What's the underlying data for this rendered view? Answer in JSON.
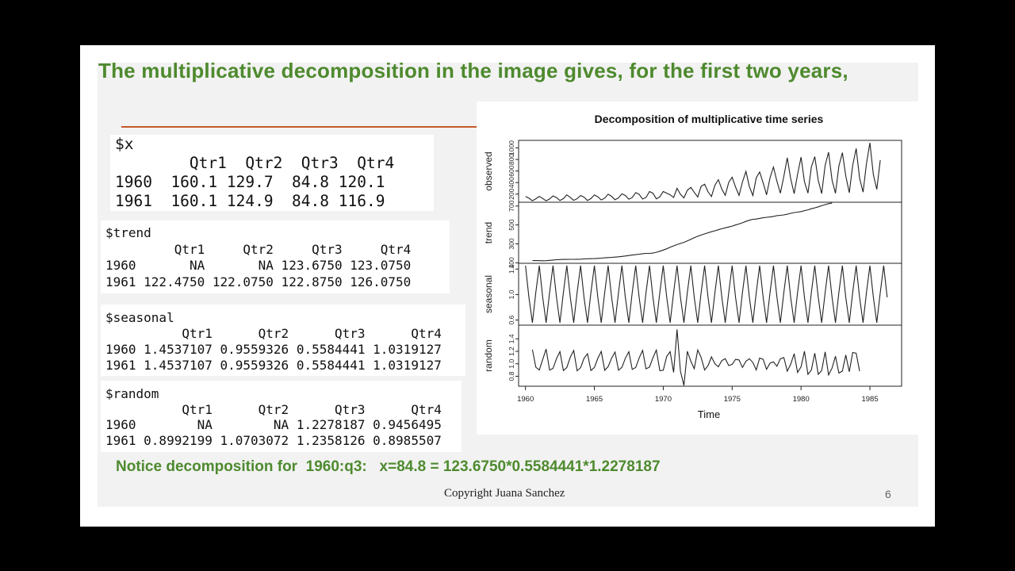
{
  "slide": {
    "headline": "The multiplicative decomposition in the image gives, for the first two years,",
    "notice": "Notice decomposition for  1960:q3:   x=84.8 = 123.6750*0.5584441*1.2278187",
    "copyright": "Copyright Juana Sanchez",
    "slide_number": "6"
  },
  "console_outputs": {
    "x": "$x\n        Qtr1  Qtr2  Qtr3  Qtr4\n1960  160.1 129.7  84.8 120.1\n1961  160.1 124.9  84.8 116.9",
    "trend": "$trend\n         Qtr1     Qtr2     Qtr3     Qtr4\n1960       NA       NA 123.6750 123.0750\n1961 122.4750 122.0750 122.8750 126.0750",
    "seasonal": "$seasonal\n          Qtr1      Qtr2      Qtr3      Qtr4\n1960 1.4537107 0.9559326 0.5584441 1.0319127\n1961 1.4537107 0.9559326 0.5584441 1.0319127",
    "random": "$random\n          Qtr1      Qtr2      Qtr3      Qtr4\n1960        NA        NA 1.2278187 0.9456495\n1961 0.8992199 1.0703072 1.2358126 0.8985507"
  },
  "chart_data": {
    "type": "line",
    "title": "Decomposition of multiplicative time series",
    "xlabel": "Time",
    "x_ticks": [
      1960,
      1965,
      1970,
      1975,
      1980,
      1985
    ],
    "xlim": [
      1959.5,
      1987.3
    ],
    "frequency": 4,
    "start": 1960.0,
    "panels": [
      {
        "name": "observed",
        "ylim": [
          60,
          1130
        ],
        "ticks": [
          200,
          400,
          600,
          800,
          1000
        ],
        "tick_labels": [
          "200",
          "400",
          "600",
          "800",
          "1000"
        ],
        "values": [
          160.1,
          129.7,
          84.8,
          120.1,
          160.1,
          124.9,
          84.8,
          116.9,
          169.7,
          140.9,
          89.7,
          123.3,
          187.3,
          144.1,
          92.9,
          120.1,
          176.8,
          147.3,
          89.7,
          123.3,
          185.7,
          155.3,
          99.3,
          131.3,
          200.1,
          161.7,
          102.5,
          136.1,
          204.9,
          176.1,
          112.1,
          140.9,
          227.3,
          195.3,
          115.3,
          142.5,
          244.9,
          214.5,
          118.5,
          153.7,
          244.9,
          216.1,
          188.9,
          142.5,
          301.0,
          196.9,
          136.1,
          267.3,
          317.0,
          230.5,
          152.1,
          336.2,
          371.4,
          240.1,
          158.5,
          355.4,
          449.9,
          286.6,
          179.3,
          403.4,
          491.5,
          321.8,
          177.7,
          409.8,
          593.9,
          329.8,
          176.1,
          483.5,
          584.3,
          395.4,
          187.3,
          485.1,
          669.2,
          421.0,
          216.1,
          509.1,
          827.7,
          467.5,
          209.7,
          542.7,
          840.5,
          414.6,
          217.7,
          670.8,
          848.5,
          437.0,
          209.7,
          701.2,
          925.3,
          443.4,
          214.5,
          683.6,
          917.3,
          515.5,
          224.1,
          694.8,
          989.4,
          477.1,
          233.7,
          730.0,
          1087.0,
          534.7,
          281.8,
          787.6
        ]
      },
      {
        "name": "trend",
        "ylim": [
          95,
          740
        ],
        "ticks": [
          100,
          300,
          500,
          700
        ],
        "tick_labels": [
          "100",
          "300",
          "500",
          "700"
        ],
        "offset": 2,
        "values": [
          123.675,
          123.075,
          122.475,
          122.075,
          122.875,
          126.075,
          129.075,
          132.475,
          134.775,
          135.875,
          136.275,
          136.575,
          136.775,
          137.475,
          138.875,
          140.975,
          142.575,
          143.475,
          144.675,
          147.075,
          149.775,
          152.475,
          154.975,
          157.475,
          160.375,
          163.775,
          167.775,
          172.375,
          177.175,
          181.775,
          186.375,
          191.175,
          196.375,
          199.675,
          199.675,
          202.975,
          211.075,
          222.675,
          234.475,
          247.875,
          264.475,
          279.275,
          292.775,
          304.675,
          315.975,
          330.975,
          348.375,
          364.975,
          380.275,
          393.175,
          405.975,
          417.475,
          428.075,
          438.375,
          448.975,
          460.075,
          469.675,
          478.375,
          487.475,
          499.175,
          510.475,
          522.875,
          537.275,
          549.475,
          559.775,
          562.475,
          569.475,
          576.075,
          580.875,
          584.175,
          589.975,
          598.475,
          601.875,
          606.375,
          613.775,
          622.975,
          630.775,
          634.975,
          641.175,
          651.175,
          659.775,
          671.075,
          680.575,
          691.375,
          703.175,
          714.575,
          724.675,
          730.775
        ]
      },
      {
        "name": "seasonal",
        "ylim": [
          0.52,
          1.49
        ],
        "ticks": [
          0.6,
          1.0,
          1.4
        ],
        "tick_labels": [
          "0.6",
          "1.0",
          "1.4"
        ],
        "pattern": [
          1.4537107,
          0.9559326,
          0.5584441,
          1.0319127
        ],
        "repeat": 106
      },
      {
        "name": "random",
        "ylim": [
          0.64,
          1.62
        ],
        "ticks": [
          0.8,
          1.0,
          1.2,
          1.4
        ],
        "tick_labels": [
          "0.8",
          "1.0",
          "1.2",
          "1.4"
        ],
        "offset": 2,
        "values": [
          1.2278187,
          0.9456495,
          0.8992199,
          1.0703072,
          1.2358126,
          0.8985507,
          0.9258,
          1.0812,
          1.1944,
          0.8905,
          0.9405,
          1.1063,
          1.2133,
          0.8866,
          0.9381,
          1.0882,
          1.1617,
          0.8917,
          0.9418,
          1.0866,
          1.1987,
          0.8955,
          0.9549,
          1.0908,
          1.1887,
          0.8955,
          0.9434,
          1.0886,
          1.1937,
          0.9099,
          0.9408,
          1.0932,
          1.2149,
          0.9188,
          0.9474,
          1.0974,
          1.2203,
          0.8895,
          0.8952,
          1.1189,
          1.1943,
          0.8612,
          1.5512,
          0.8815,
          0.6513,
          1.2012,
          1.0412,
          0.9213,
          1.2212,
          1.1012,
          0.9012,
          0.9712,
          1.1112,
          1.0012,
          0.9512,
          1.0512,
          1.0812,
          0.9712,
          0.9912,
          1.0712,
          1.0612,
          0.9412,
          1.0412,
          1.0812,
          1.0212,
          0.9012,
          1.0912,
          1.0712,
          0.9112,
          1.0112,
          1.0312,
          0.9612,
          1.0812,
          1.1012,
          0.8812,
          0.9912,
          1.1612,
          0.8612,
          0.9512,
          1.2012,
          0.8312,
          0.9012,
          1.1712,
          0.8312,
          0.8912,
          1.1912,
          0.8212,
          0.9312,
          1.1212,
          0.8512,
          0.8812,
          1.1412,
          0.8712,
          1.1812,
          1.1712,
          0.8812
        ]
      }
    ]
  }
}
